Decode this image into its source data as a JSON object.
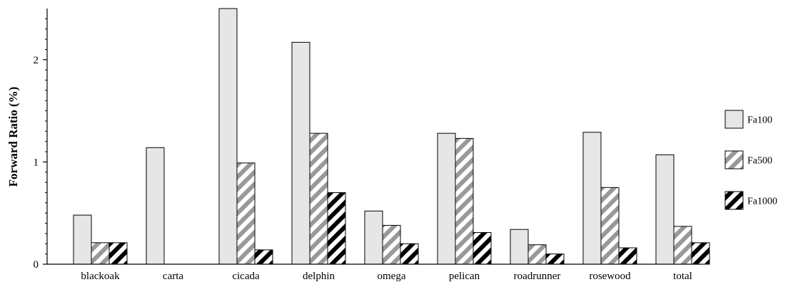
{
  "chart_data": {
    "type": "bar",
    "ylabel": "Forward Ratio (%)",
    "xlabel": "",
    "ylim": [
      0,
      2.5
    ],
    "yticks": [
      0,
      1,
      2
    ],
    "ytick_labels": [
      "0",
      "1",
      "2"
    ],
    "categories": [
      "blackoak",
      "carta",
      "cicada",
      "delphin",
      "omega",
      "pelican",
      "roadrunner",
      "rosewood",
      "total"
    ],
    "series": [
      {
        "name": "Fa100",
        "pattern": "solid-light-gray",
        "color": "#e6e6e6",
        "values": [
          0.48,
          1.14,
          2.5,
          2.17,
          0.52,
          1.28,
          0.34,
          1.29,
          1.07
        ]
      },
      {
        "name": "Fa500",
        "pattern": "gray-white-diagonal-stripes",
        "color": "#999999",
        "values": [
          0.21,
          0.0,
          0.99,
          1.28,
          0.38,
          1.23,
          0.19,
          0.75,
          0.37
        ]
      },
      {
        "name": "Fa1000",
        "pattern": "black-white-diagonal-stripes",
        "color": "#000000",
        "values": [
          0.21,
          0.0,
          0.14,
          0.7,
          0.2,
          0.31,
          0.1,
          0.16,
          0.21
        ]
      }
    ],
    "legend_position": "right",
    "grid": false
  }
}
